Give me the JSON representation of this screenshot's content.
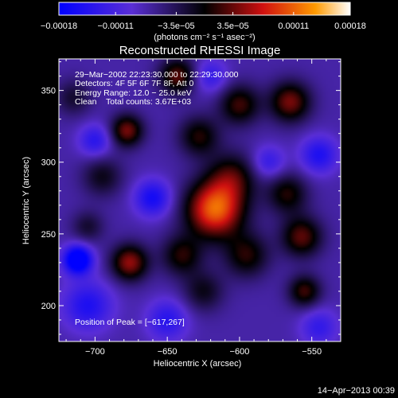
{
  "chart_data": {
    "type": "heatmap",
    "title": "Reconstructed RHESSI Image",
    "xlabel": "Heliocentric X (arcsec)",
    "ylabel": "Heliocentric Y (arcsec)",
    "xlim": [
      -725,
      -530
    ],
    "ylim": [
      175,
      372
    ],
    "x_ticks": [
      -700,
      -650,
      -600,
      -550
    ],
    "x_tick_labels": [
      "−700",
      "−650",
      "−600",
      "−550"
    ],
    "y_ticks": [
      200,
      250,
      300,
      350
    ],
    "y_tick_labels": [
      "200",
      "250",
      "300",
      "350"
    ],
    "colorbar": {
      "range": [
        -0.00018,
        0.00018
      ],
      "ticks": [
        -0.00018,
        -0.00011,
        -3.5e-05,
        3.5e-05,
        0.00011,
        0.00018
      ],
      "tick_labels": [
        "−0.00018",
        "−0.00011",
        "−3.5e−05",
        "3.5e−05",
        "0.00011",
        "0.00018"
      ],
      "unit_label": "(photons cm⁻² s⁻¹ asec⁻²)"
    },
    "blobs": [
      {
        "x": -617,
        "y": 267,
        "amp": 0.00018,
        "sigma": 14
      },
      {
        "x": -605,
        "y": 290,
        "amp": 8e-05,
        "sigma": 12
      },
      {
        "x": -676,
        "y": 230,
        "amp": 0.00012,
        "sigma": 9
      },
      {
        "x": -678,
        "y": 322,
        "amp": 0.00011,
        "sigma": 8
      },
      {
        "x": -643,
        "y": 360,
        "amp": 0.0001,
        "sigma": 9
      },
      {
        "x": -600,
        "y": 340,
        "amp": 9e-05,
        "sigma": 10
      },
      {
        "x": -628,
        "y": 318,
        "amp": 8e-05,
        "sigma": 10
      },
      {
        "x": -565,
        "y": 342,
        "amp": 0.00011,
        "sigma": 10
      },
      {
        "x": -557,
        "y": 248,
        "amp": 0.0001,
        "sigma": 10
      },
      {
        "x": -567,
        "y": 278,
        "amp": 8e-05,
        "sigma": 10
      },
      {
        "x": -555,
        "y": 210,
        "amp": 9e-05,
        "sigma": 8
      },
      {
        "x": -595,
        "y": 235,
        "amp": 8e-05,
        "sigma": 11
      },
      {
        "x": -640,
        "y": 235,
        "amp": 8e-05,
        "sigma": 10
      },
      {
        "x": -625,
        "y": 210,
        "amp": 6e-05,
        "sigma": 10
      },
      {
        "x": -695,
        "y": 290,
        "amp": 6e-05,
        "sigma": 10
      },
      {
        "x": -705,
        "y": 255,
        "amp": 5e-05,
        "sigma": 8
      },
      {
        "x": -715,
        "y": 345,
        "amp": 5e-05,
        "sigma": 9
      },
      {
        "x": -712,
        "y": 232,
        "amp": -0.00016,
        "sigma": 7
      },
      {
        "x": -705,
        "y": 200,
        "amp": -8e-05,
        "sigma": 12
      },
      {
        "x": -660,
        "y": 275,
        "amp": -9e-05,
        "sigma": 9
      },
      {
        "x": -700,
        "y": 315,
        "amp": -7e-05,
        "sigma": 8
      },
      {
        "x": -580,
        "y": 300,
        "amp": -6e-05,
        "sigma": 8
      },
      {
        "x": -545,
        "y": 305,
        "amp": -8e-05,
        "sigma": 9
      },
      {
        "x": -545,
        "y": 185,
        "amp": -6e-05,
        "sigma": 9
      },
      {
        "x": -650,
        "y": 190,
        "amp": -7e-05,
        "sigma": 10
      },
      {
        "x": -620,
        "y": 360,
        "amp": -6e-05,
        "sigma": 8
      }
    ],
    "annotations": {
      "time_range": "29−Mar−2002 22:23:30.000 to 22:29:30.000",
      "detectors": "Detectors: 4F 5F 6F 7F 8F, Att 0",
      "energy_range": "Energy Range: 12.0 − 25.0 keV",
      "method": "Clean",
      "total_counts": "Total counts: 3.67E+03",
      "peak_position": "Position of Peak = [−617,267]"
    },
    "footer_date": "14−Apr−2013 00:39"
  }
}
